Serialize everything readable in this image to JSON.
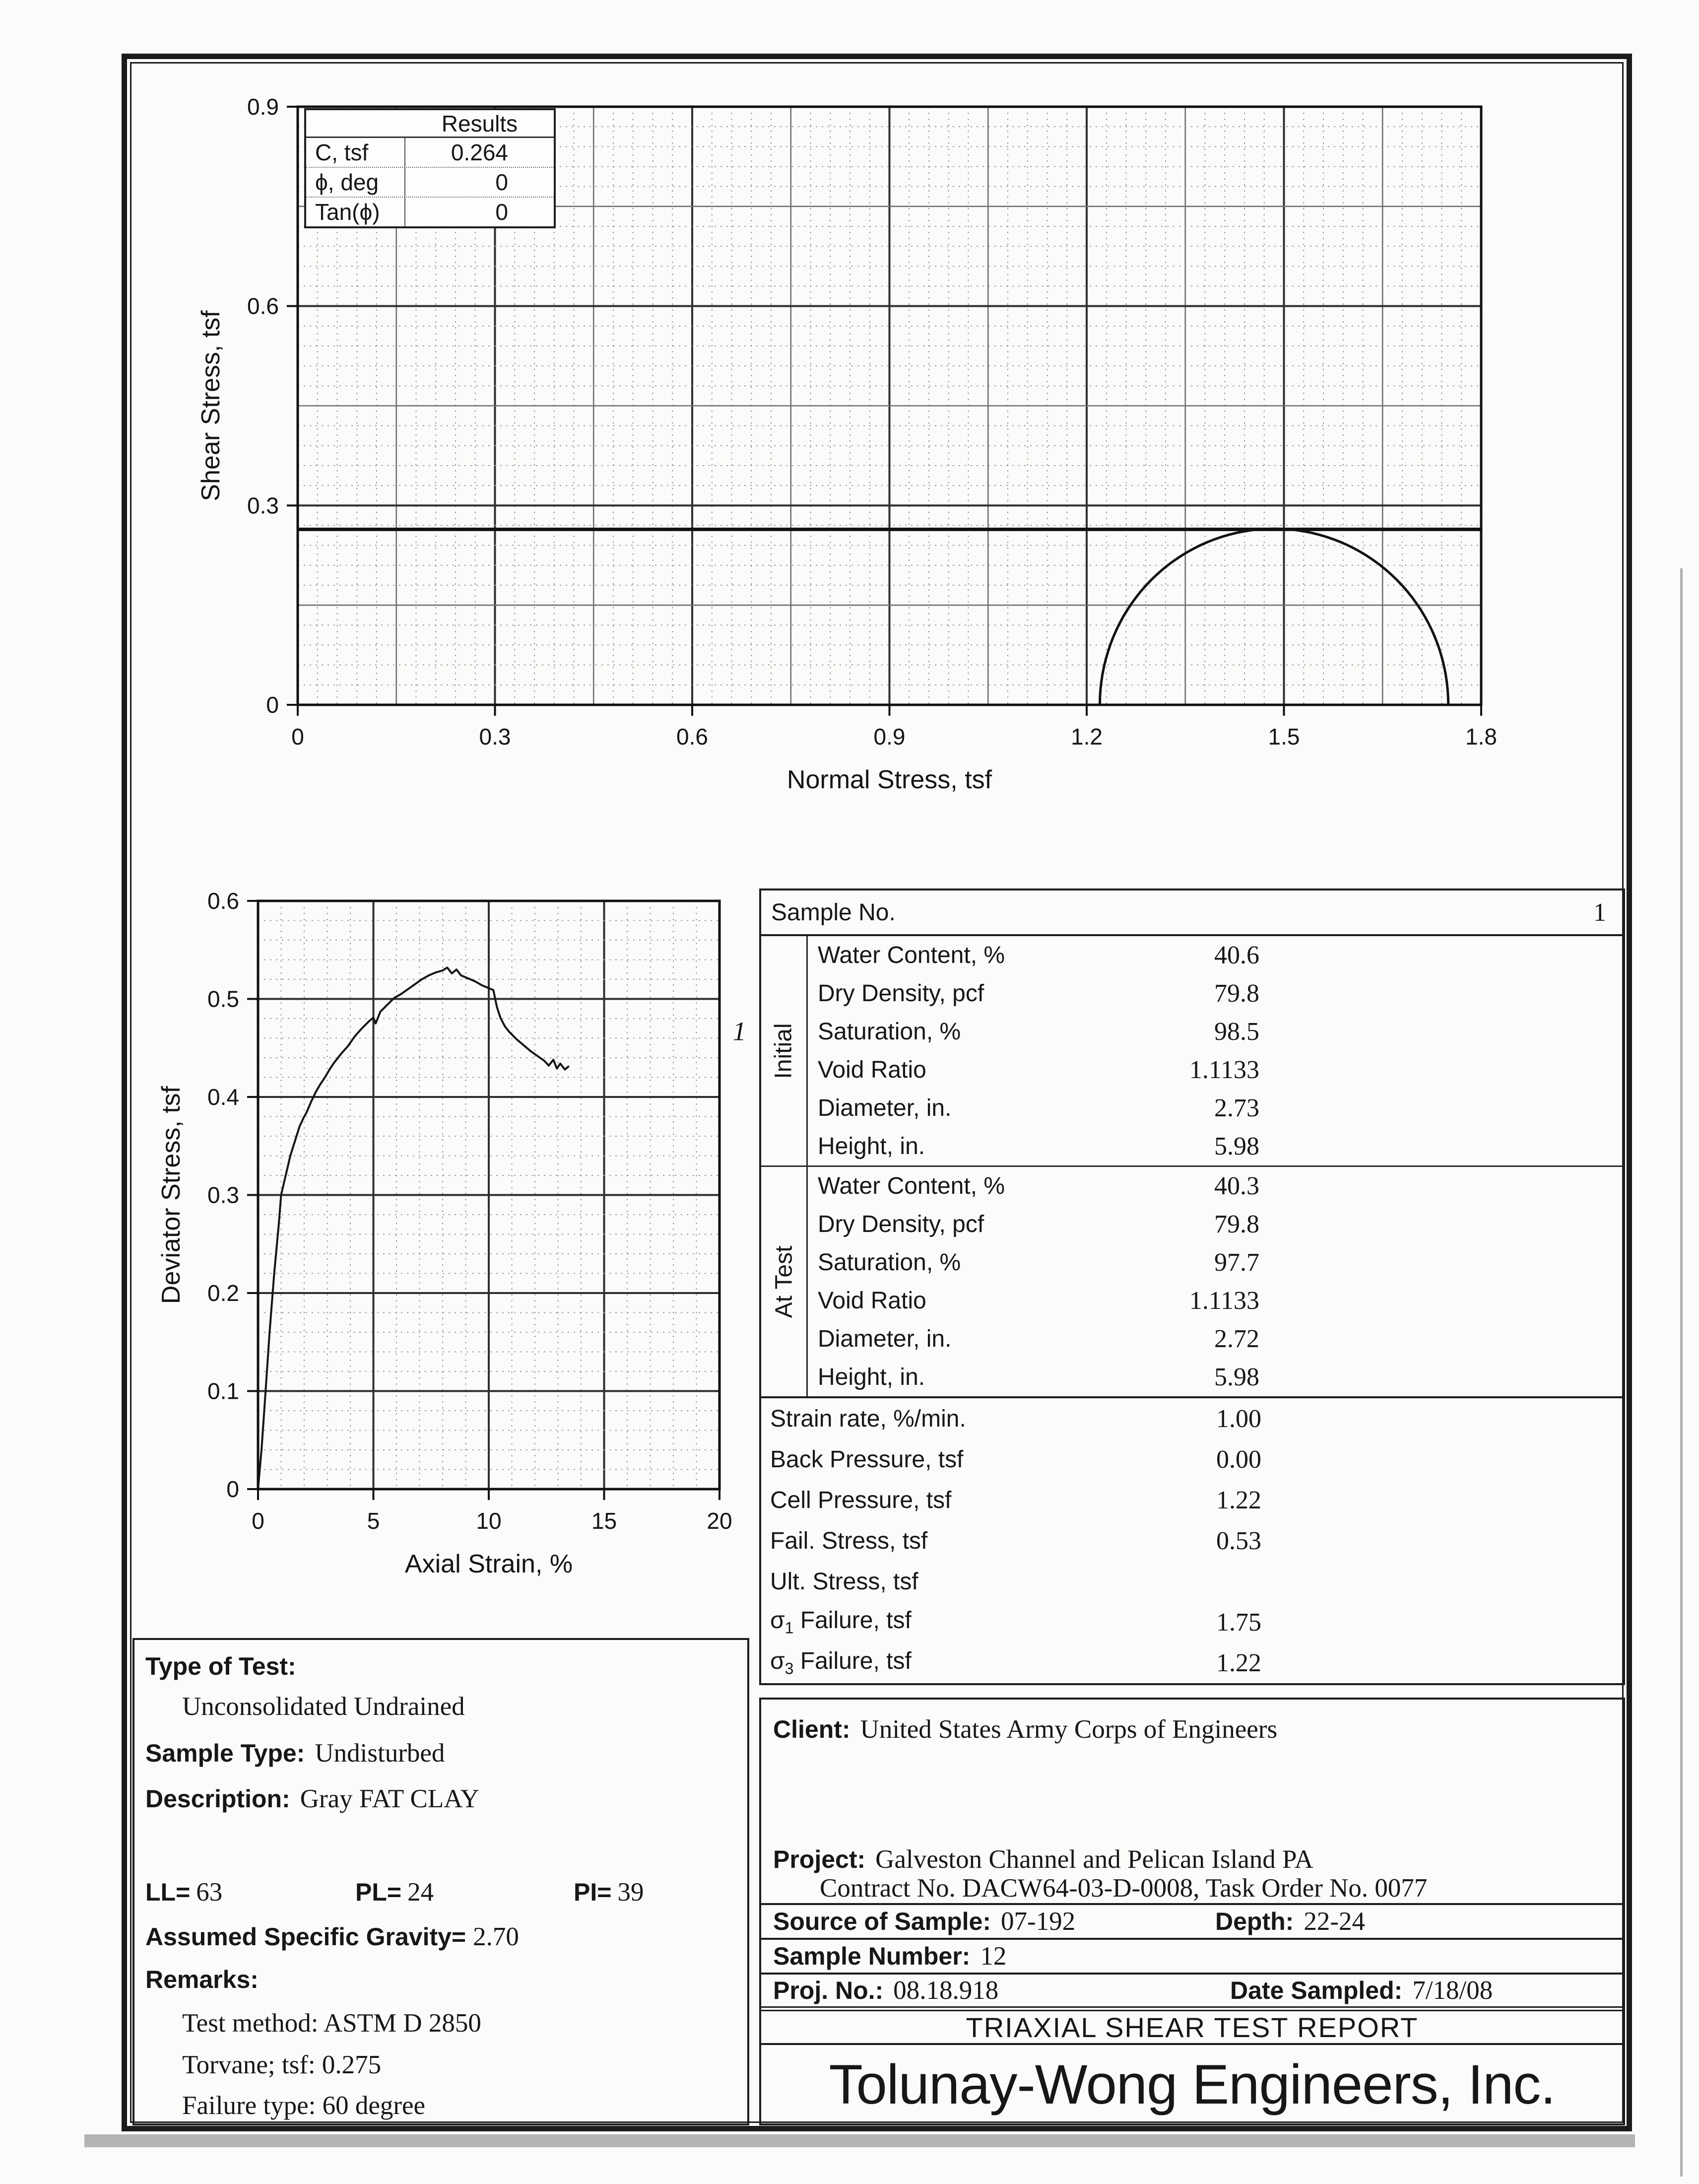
{
  "results_box": {
    "title": "Results",
    "rows": [
      {
        "label": "C, tsf",
        "value": "0.264"
      },
      {
        "label": "ϕ, deg",
        "value": "0"
      },
      {
        "label": "Tan(ϕ)",
        "value": "0"
      }
    ]
  },
  "sample_table": {
    "header": {
      "label": "Sample No.",
      "value": "1"
    },
    "initial": {
      "group": "Initial",
      "rows": [
        [
          "Water Content, %",
          "40.6"
        ],
        [
          "Dry Density, pcf",
          "79.8"
        ],
        [
          "Saturation, %",
          "98.5"
        ],
        [
          "Void Ratio",
          "1.1133"
        ],
        [
          "Diameter, in.",
          "2.73"
        ],
        [
          "Height, in.",
          "5.98"
        ]
      ]
    },
    "at_test": {
      "group": "At Test",
      "rows": [
        [
          "Water Content, %",
          "40.3"
        ],
        [
          "Dry Density, pcf",
          "79.8"
        ],
        [
          "Saturation, %",
          "97.7"
        ],
        [
          "Void Ratio",
          "1.1133"
        ],
        [
          "Diameter, in.",
          "2.72"
        ],
        [
          "Height, in.",
          "5.98"
        ]
      ]
    },
    "params": [
      {
        "label": "Strain rate, %/min.",
        "value": "1.00"
      },
      {
        "label": "Back Pressure, tsf",
        "value": "0.00"
      },
      {
        "label": "Cell Pressure, tsf",
        "value": "1.22"
      },
      {
        "label": "Fail. Stress, tsf",
        "value": "0.53"
      },
      {
        "label": "Ult. Stress, tsf",
        "value": ""
      },
      {
        "pre": "σ",
        "sub": "1",
        "label": " Failure, tsf",
        "value": "1.75"
      },
      {
        "pre": "σ",
        "sub": "3",
        "label": " Failure, tsf",
        "value": "1.22"
      }
    ]
  },
  "test_info": {
    "type_of_test_label": "Type of Test:",
    "type_of_test": "Unconsolidated Undrained",
    "sample_type_label": "Sample Type:",
    "sample_type": "Undisturbed",
    "description_label": "Description:",
    "description": "Gray FAT CLAY",
    "ll_label": "LL=",
    "ll": "63",
    "pl_label": "PL=",
    "pl": "24",
    "pi_label": "PI=",
    "pi": "39",
    "gravity_label": "Assumed Specific Gravity=",
    "gravity": "2.70",
    "remarks_label": "Remarks:",
    "remarks": [
      "Test method: ASTM D 2850",
      "Torvane; tsf: 0.275",
      "Failure type: 60 degree"
    ]
  },
  "project_info": {
    "client_label": "Client:",
    "client": "United States Army Corps of Engineers",
    "project_label": "Project:",
    "project": "Galveston Channel and Pelican Island PA",
    "contract": "Contract No. DACW64-03-D-0008, Task Order No. 0077",
    "source_label": "Source of Sample:",
    "source": "07-192",
    "depth_label": "Depth:",
    "depth": "22-24",
    "sample_number_label": "Sample Number:",
    "sample_number": "12",
    "proj_no_label": "Proj. No.:",
    "proj_no": "08.18.918",
    "date_label": "Date Sampled:",
    "date": "7/18/08",
    "report_title": "TRIAXIAL SHEAR TEST REPORT",
    "company": "Tolunay-Wong Engineers, Inc."
  },
  "chart_data": [
    {
      "type": "line",
      "name": "mohr-circle-plot",
      "title": "",
      "xlabel": "Normal Stress, tsf",
      "ylabel": "Shear Stress, tsf",
      "xlim": [
        0,
        1.8
      ],
      "ylim": [
        0,
        0.9
      ],
      "xticks": [
        0,
        0.3,
        0.6,
        0.9,
        1.2,
        1.5,
        1.8
      ],
      "yticks": [
        0,
        0.3,
        0.6,
        0.9
      ],
      "grid": {
        "x_step": 0.03,
        "x_med_every": 5,
        "x_major_every": 10,
        "y_step": 0.03,
        "y_med_every": 5,
        "y_major_every": 10
      },
      "failure_envelope": {
        "c_tsf": 0.264,
        "phi_deg": 0,
        "tan_phi": 0
      },
      "mohr_circles": [
        {
          "sigma3": 1.22,
          "sigma1": 1.75
        }
      ]
    },
    {
      "type": "line",
      "name": "stress-strain-plot",
      "title": "",
      "xlabel": "Axial Strain, %",
      "ylabel": "Deviator Stress, tsf",
      "xlim": [
        0,
        20
      ],
      "ylim": [
        0,
        0.6
      ],
      "xticks": [
        0,
        5,
        10,
        15,
        20
      ],
      "yticks": [
        0,
        0.1,
        0.2,
        0.3,
        0.4,
        0.5,
        0.6
      ],
      "grid": {
        "x_step": 1,
        "x_major_every": 5,
        "y_step": 0.02,
        "y_major_every": 5
      },
      "series": [
        {
          "name": "1",
          "points": [
            [
              0,
              0
            ],
            [
              0.15,
              0.04
            ],
            [
              0.3,
              0.09
            ],
            [
              0.5,
              0.16
            ],
            [
              0.7,
              0.22
            ],
            [
              0.9,
              0.27
            ],
            [
              1.0,
              0.3
            ],
            [
              1.2,
              0.32
            ],
            [
              1.4,
              0.34
            ],
            [
              1.6,
              0.355
            ],
            [
              1.8,
              0.37
            ],
            [
              2.0,
              0.38
            ],
            [
              2.1,
              0.384
            ],
            [
              2.3,
              0.395
            ],
            [
              2.5,
              0.405
            ],
            [
              2.7,
              0.413
            ],
            [
              2.9,
              0.42
            ],
            [
              3.1,
              0.428
            ],
            [
              3.3,
              0.435
            ],
            [
              3.6,
              0.444
            ],
            [
              3.9,
              0.452
            ],
            [
              4.2,
              0.462
            ],
            [
              4.5,
              0.47
            ],
            [
              4.8,
              0.477
            ],
            [
              5.0,
              0.481
            ],
            [
              5.1,
              0.475
            ],
            [
              5.3,
              0.487
            ],
            [
              5.6,
              0.494
            ],
            [
              5.9,
              0.501
            ],
            [
              6.2,
              0.505
            ],
            [
              6.5,
              0.51
            ],
            [
              6.8,
              0.515
            ],
            [
              7.1,
              0.52
            ],
            [
              7.4,
              0.524
            ],
            [
              7.7,
              0.527
            ],
            [
              8.0,
              0.529
            ],
            [
              8.2,
              0.532
            ],
            [
              8.4,
              0.526
            ],
            [
              8.6,
              0.53
            ],
            [
              8.8,
              0.524
            ],
            [
              9.1,
              0.521
            ],
            [
              9.4,
              0.518
            ],
            [
              9.7,
              0.514
            ],
            [
              10.0,
              0.511
            ],
            [
              10.2,
              0.509
            ],
            [
              10.35,
              0.492
            ],
            [
              10.5,
              0.481
            ],
            [
              10.7,
              0.472
            ],
            [
              10.9,
              0.466
            ],
            [
              11.2,
              0.459
            ],
            [
              11.5,
              0.453
            ],
            [
              11.8,
              0.447
            ],
            [
              12.1,
              0.442
            ],
            [
              12.4,
              0.437
            ],
            [
              12.6,
              0.432
            ],
            [
              12.8,
              0.438
            ],
            [
              12.95,
              0.429
            ],
            [
              13.1,
              0.434
            ],
            [
              13.3,
              0.428
            ],
            [
              13.45,
              0.431
            ]
          ]
        }
      ]
    }
  ]
}
